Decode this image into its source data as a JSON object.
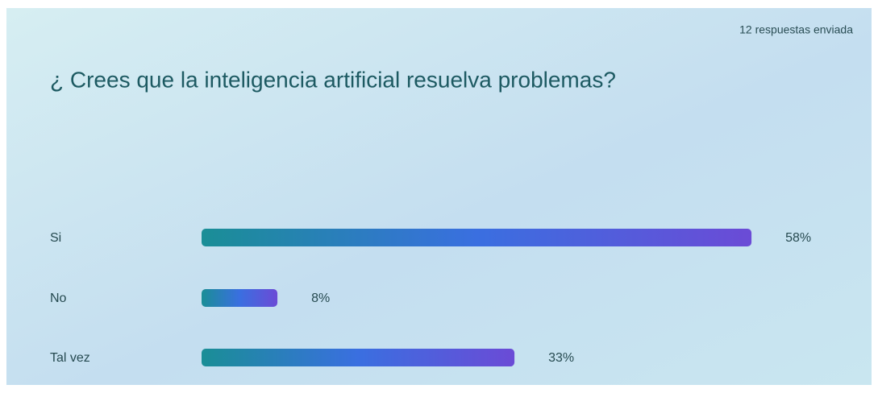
{
  "chart_data": {
    "type": "bar",
    "orientation": "horizontal",
    "annotation": "12 respuestas enviada",
    "title": "¿ Crees que la inteligencia artificial resuelva problemas?",
    "categories": [
      "Si",
      "No",
      "Tal vez"
    ],
    "values": [
      58,
      8,
      33
    ],
    "value_labels": [
      "58%",
      "8%",
      "33%"
    ],
    "colors": [
      "#1a8e96",
      "#3a6fe0",
      "#6b4bd6"
    ]
  }
}
